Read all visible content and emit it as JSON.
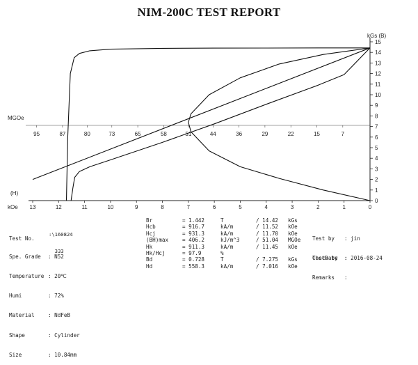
{
  "title": "NIM-200C TEST REPORT",
  "chart_data": {
    "type": "line",
    "x_axis": {
      "label": "kOe",
      "origin_label": "(H)",
      "reversed": true,
      "range": [
        0,
        13
      ],
      "ticks": [
        13,
        12,
        11,
        10,
        9,
        8,
        7,
        6,
        5,
        4,
        3,
        2,
        1,
        0
      ]
    },
    "y_axis": {
      "label": "kGs (B)",
      "position": "right",
      "range": [
        0,
        15
      ],
      "ticks": [
        0,
        1,
        2,
        3,
        4,
        5,
        6,
        7,
        8,
        9,
        10,
        11,
        12,
        13,
        14,
        15
      ]
    },
    "energy_axis": {
      "label": "MGOe",
      "ticks": [
        {
          "label": "95",
          "h": 12.85
        },
        {
          "label": "87",
          "h": 11.85
        },
        {
          "label": "80",
          "h": 10.9
        },
        {
          "label": "73",
          "h": 9.95
        },
        {
          "label": "65",
          "h": 8.95
        },
        {
          "label": "58",
          "h": 7.95
        },
        {
          "label": "51",
          "h": 7.0
        },
        {
          "label": "44",
          "h": 6.05
        },
        {
          "label": "36",
          "h": 5.05
        },
        {
          "label": "29",
          "h": 4.05
        },
        {
          "label": "22",
          "h": 3.05
        },
        {
          "label": "15",
          "h": 2.05
        },
        {
          "label": "7",
          "h": 1.05
        }
      ]
    },
    "series": [
      {
        "key": "J_intrinsic",
        "x": [
          11.7,
          11.65,
          11.55,
          11.4,
          11.2,
          10.8,
          10.0,
          8.0,
          6.0,
          4.0,
          2.0,
          0.5,
          0
        ],
        "y": [
          0,
          6.0,
          12.0,
          13.5,
          13.9,
          14.15,
          14.3,
          14.38,
          14.4,
          14.41,
          14.42,
          14.42,
          14.42
        ]
      },
      {
        "key": "B_normal",
        "x": [
          11.52,
          11.45,
          11.38,
          11.2,
          10.8,
          10.0,
          8.0,
          6.0,
          4.0,
          2.0,
          1.0,
          0
        ],
        "y": [
          0,
          1.2,
          2.2,
          2.75,
          3.2,
          3.85,
          5.5,
          7.25,
          9.1,
          10.9,
          11.9,
          14.42
        ]
      },
      {
        "key": "BH_product",
        "x": [
          0,
          1.8,
          3.5,
          5.0,
          6.2,
          6.9,
          7.0,
          6.9,
          6.2,
          5.0,
          3.5,
          1.8,
          0
        ],
        "y": [
          0,
          1.0,
          2.1,
          3.2,
          4.7,
          6.5,
          7.4,
          8.2,
          10.0,
          11.6,
          12.9,
          13.8,
          14.42
        ]
      },
      {
        "key": "load_line",
        "x": [
          0,
          13
        ],
        "y": [
          14.42,
          2.0
        ]
      }
    ]
  },
  "info": {
    "test_no_label": "Test No.",
    "test_no_value_1": "160824",
    "test_no_value_2": "333",
    "spec_grade_label": "Spe. Grade",
    "spec_grade_value": ": N52",
    "temperature_label": "Temperature",
    "temperature_value": ": 20℃",
    "humi_label": "Humi",
    "humi_value": ": 72%",
    "material_label": "Material",
    "material_value": ": NdFeB",
    "shape_label": "Shape",
    "shape_value": ": Cylinder",
    "size_label": "Size",
    "size_value": ": 10.84mm",
    "measurements": [
      {
        "name": "Br",
        "v1": "= 1.442",
        "u1": "T",
        "v2": "/ 14.42",
        "u2": "kGs"
      },
      {
        "name": "Hcb",
        "v1": "= 916.7",
        "u1": "kA/m",
        "v2": "/ 11.52",
        "u2": "kOe"
      },
      {
        "name": "Hcj",
        "v1": "= 931.3",
        "u1": "kA/m",
        "v2": "/ 11.70",
        "u2": "kOe"
      },
      {
        "name": "(BH)max",
        "v1": "= 406.2",
        "u1": "kJ/m^3",
        "v2": "/ 51.04",
        "u2": "MGOe"
      },
      {
        "name": "Hk",
        "v1": "= 911.3",
        "u1": "kA/m",
        "v2": "/ 11.45",
        "u2": "kOe"
      },
      {
        "name": "Hk/Hcj",
        "v1": "= 97.9",
        "u1": "%",
        "v2": "",
        "u2": ""
      },
      {
        "name": "Bd",
        "v1": "= 0.728",
        "u1": "T",
        "v2": "/ 7.275",
        "u2": "kGs"
      },
      {
        "name": "Hd",
        "v1": "= 558.3",
        "u1": "kA/m",
        "v2": "/ 7.016",
        "u2": "kOe"
      }
    ],
    "test_by_label": "Test by",
    "test_by_value": ": jin",
    "check_by_label": "Check by",
    "check_by_value": ":",
    "test_date_label": "TestDate",
    "test_date_value": ": 2016-08-24",
    "remarks_label": "Remarks",
    "remarks_value": ":"
  }
}
